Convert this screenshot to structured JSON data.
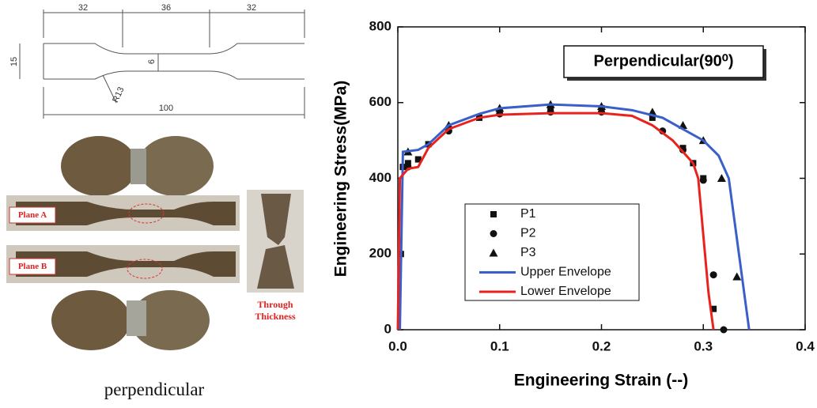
{
  "figure": {
    "dimensions": {
      "left": 32,
      "middle": 36,
      "right": 32,
      "width": 15,
      "neck": 6,
      "radius": "R13",
      "length": 100
    },
    "plane_a": "Plane A",
    "plane_b": "Plane B",
    "through": "Through Thickness",
    "caption": "perpendicular"
  },
  "chart_data": {
    "type": "scatter",
    "annotation": "Perpendicular(90⁰)",
    "x_label": "Engineering Strain (--)",
    "y_label": "Engineering Stress(MPa)",
    "xlim": [
      0,
      0.4
    ],
    "ylim": [
      0,
      800
    ],
    "xticks": [
      {
        "value": 0,
        "label": "0.0"
      },
      0.1,
      0.2,
      0.3,
      0.4
    ],
    "yticks": [
      0,
      200,
      400,
      600,
      800
    ],
    "legend": "center",
    "series": [
      {
        "name": "P1",
        "marker": "square",
        "color": "#111111",
        "x": [
          0.003,
          0.005,
          0.01,
          0.02,
          0.03,
          0.05,
          0.08,
          0.1,
          0.15,
          0.2,
          0.25,
          0.28,
          0.29,
          0.3,
          0.31
        ],
        "values": [
          200,
          430,
          440,
          450,
          490,
          530,
          560,
          575,
          585,
          585,
          560,
          480,
          440,
          400,
          55
        ]
      },
      {
        "name": "P2",
        "marker": "circle",
        "color": "#111111",
        "x": [
          0.01,
          0.05,
          0.1,
          0.15,
          0.2,
          0.26,
          0.28,
          0.3,
          0.31,
          0.32
        ],
        "values": [
          430,
          525,
          570,
          575,
          575,
          525,
          475,
          395,
          145,
          0
        ]
      },
      {
        "name": "P3",
        "marker": "triangle",
        "color": "#111111",
        "x": [
          0.01,
          0.05,
          0.1,
          0.15,
          0.2,
          0.25,
          0.28,
          0.3,
          0.318,
          0.333
        ],
        "values": [
          470,
          540,
          585,
          595,
          590,
          575,
          540,
          500,
          400,
          140
        ]
      },
      {
        "name": "Upper Envelope",
        "marker": "line",
        "color": "#3a5fc8",
        "x": [
          0.002,
          0.005,
          0.02,
          0.03,
          0.05,
          0.08,
          0.1,
          0.15,
          0.2,
          0.23,
          0.26,
          0.28,
          0.3,
          0.315,
          0.325,
          0.335,
          0.345
        ],
        "values": [
          0,
          470,
          475,
          490,
          540,
          570,
          585,
          595,
          590,
          580,
          560,
          530,
          500,
          460,
          400,
          200,
          0
        ]
      },
      {
        "name": "Lower Envelope",
        "marker": "line",
        "color": "#e8231f",
        "x": [
          0,
          0.002,
          0.01,
          0.02,
          0.03,
          0.05,
          0.08,
          0.1,
          0.15,
          0.2,
          0.23,
          0.25,
          0.27,
          0.28,
          0.29,
          0.295,
          0.3,
          0.305,
          0.31
        ],
        "values": [
          0,
          400,
          425,
          430,
          480,
          530,
          560,
          568,
          572,
          572,
          565,
          540,
          500,
          470,
          440,
          400,
          250,
          100,
          0
        ]
      }
    ]
  }
}
